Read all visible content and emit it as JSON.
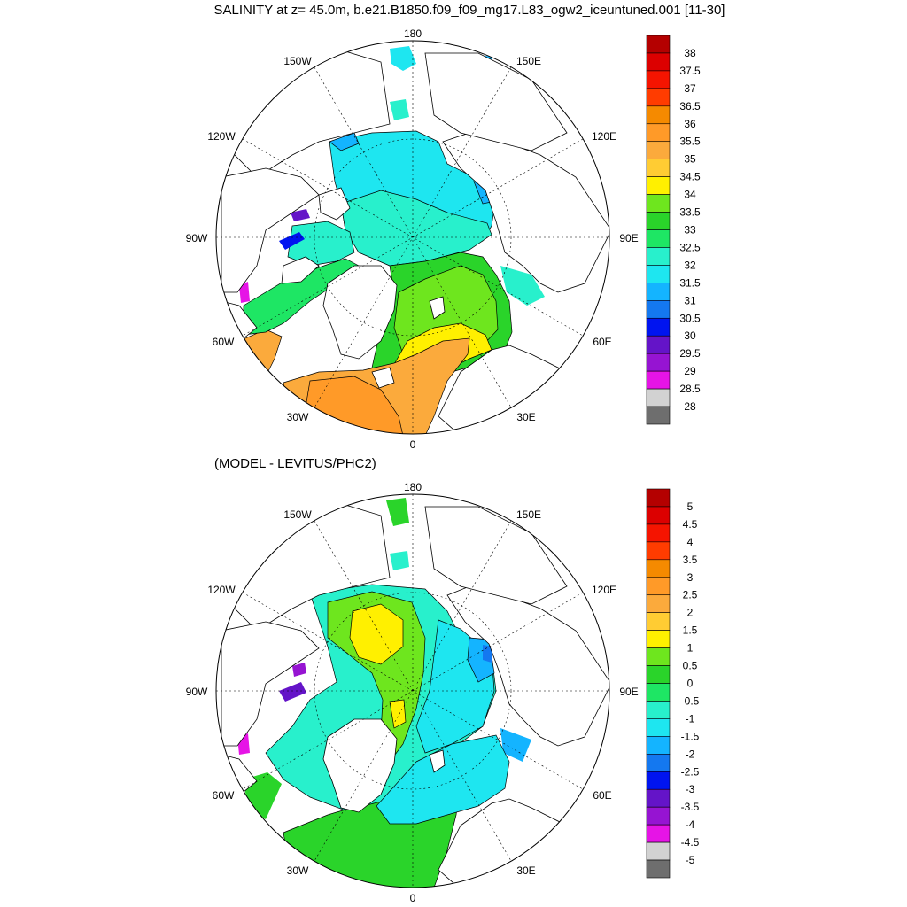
{
  "title": "SALINITY at z=  45.0m, b.e21.B1850.f09_f09_mg17.L83_ogw2_iceuntuned.001 [11-30]",
  "diff_title": "(MODEL - LEVITUS/PHC2)",
  "lon_labels": {
    "l180": "180",
    "l150w": "150W",
    "l150e": "150E",
    "l120w": "120W",
    "l120e": "120E",
    "l90w": "90W",
    "l90e": "90E",
    "l60w": "60W",
    "l60e": "60E",
    "l30w": "30W",
    "l30e": "30E",
    "l0": "0"
  },
  "colorbar_top": {
    "labels": [
      "38",
      "37.5",
      "37",
      "36.5",
      "36",
      "35.5",
      "35",
      "34.5",
      "34",
      "33.5",
      "33",
      "32.5",
      "32",
      "31.5",
      "31",
      "30.5",
      "30",
      "29.5",
      "29",
      "28.5",
      "28"
    ],
    "colors": [
      "#b40000",
      "#dc0000",
      "#f51400",
      "#ff3c00",
      "#f58a00",
      "#ff9a28",
      "#fbaa3c",
      "#ffcc33",
      "#fff000",
      "#6ee61e",
      "#2ad42a",
      "#1ee664",
      "#28f0cc",
      "#1ee6f0",
      "#14b4ff",
      "#1478f0",
      "#0014f0",
      "#6414c8",
      "#9614d2",
      "#e614e6",
      "#d2d2d2",
      "#6e6e6e"
    ]
  },
  "colorbar_bottom": {
    "labels": [
      "5",
      "4.5",
      "4",
      "3.5",
      "3",
      "2.5",
      "2",
      "1.5",
      "1",
      "0.5",
      "0",
      "-0.5",
      "-1",
      "-1.5",
      "-2",
      "-2.5",
      "-3",
      "-3.5",
      "-4",
      "-4.5",
      "-5"
    ],
    "colors": [
      "#b40000",
      "#dc0000",
      "#f51400",
      "#ff3c00",
      "#f58a00",
      "#ff9a28",
      "#fbaa3c",
      "#ffcc33",
      "#fff000",
      "#6ee61e",
      "#2ad42a",
      "#1ee664",
      "#28f0cc",
      "#1ee6f0",
      "#14b4ff",
      "#1478f0",
      "#0014f0",
      "#6414c8",
      "#9614d2",
      "#e614e6",
      "#d2d2d2",
      "#6e6e6e"
    ]
  }
}
